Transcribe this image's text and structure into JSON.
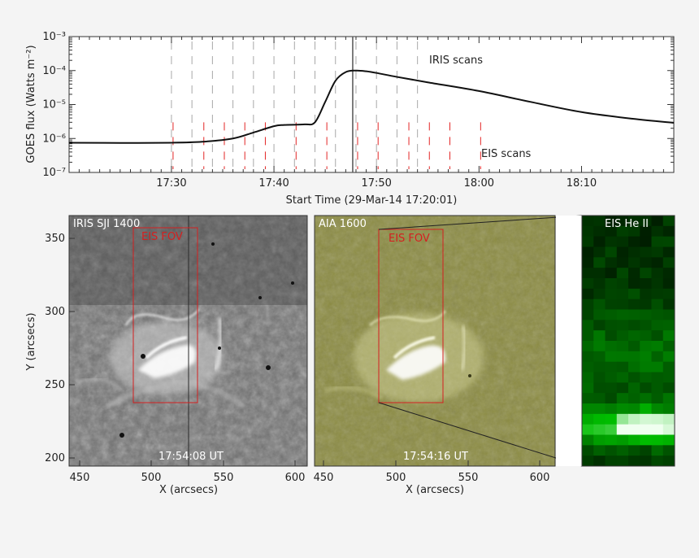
{
  "chart_data": {
    "type": "line",
    "ylabel": "GOES flux (Watts m⁻²)",
    "xlabel": "Start Time (29-Mar-14 17:20:01)",
    "xlim": [
      "17:20:01",
      "18:19:00"
    ],
    "ylim": [
      1e-07,
      0.001
    ],
    "yscale": "log",
    "x_ticks": [
      "17:30",
      "17:40",
      "17:50",
      "18:00",
      "18:10"
    ],
    "y_ticks": [
      "10⁻³",
      "10⁻⁴",
      "10⁻⁵",
      "10⁻⁶",
      "10⁻⁷"
    ],
    "series": [
      {
        "x": [
          "17:20",
          "17:25",
          "17:30",
          "17:33",
          "17:36",
          "17:38",
          "17:40",
          "17:41",
          "17:43",
          "17:44",
          "17:45",
          "17:46",
          "17:47",
          "17:48",
          "17:49",
          "17:50",
          "17:52",
          "17:55",
          "18:00",
          "18:05",
          "18:10",
          "18:15",
          "18:19"
        ],
        "values": [
          7.5e-07,
          7.4e-07,
          7.5e-07,
          8e-07,
          1e-06,
          1.5e-06,
          2.3e-06,
          2.5e-06,
          2.6e-06,
          3e-06,
          1.2e-05,
          5e-05,
          9e-05,
          0.0001,
          9.5e-05,
          8.5e-05,
          6.5e-05,
          4.5e-05,
          2.5e-05,
          1.2e-05,
          6e-06,
          3.8e-06,
          2.9e-06
        ]
      }
    ],
    "annotations": [
      {
        "text": "IRIS scans",
        "color": "#888888"
      },
      {
        "text": "EIS scans",
        "color": "#e32626"
      }
    ],
    "iris_scan_times": [
      "17:30",
      "17:32",
      "17:34",
      "17:36",
      "17:38",
      "17:40",
      "17:42",
      "17:44",
      "17:46",
      "17:48",
      "17:50",
      "17:52",
      "17:54"
    ],
    "eis_scan_times": [
      "17:30",
      "17:33",
      "17:35",
      "17:37",
      "17:39",
      "17:42",
      "17:45",
      "17:48",
      "17:50",
      "17:53",
      "17:55",
      "17:57",
      "18:00"
    ],
    "vertical_marker": "17:48"
  },
  "panels": {
    "iris": {
      "title": "IRIS SJI 1400",
      "time": "17:54:08 UT",
      "fov_label": "EIS FOV",
      "xlabel": "X (arcsecs)",
      "ylabel": "Y (arcsecs)",
      "x_ticks": [
        "450",
        "500",
        "550",
        "600"
      ],
      "y_ticks": [
        "350",
        "300",
        "250",
        "200"
      ]
    },
    "aia": {
      "title": "AIA 1600",
      "time": "17:54:16 UT",
      "fov_label": "EIS FOV",
      "xlabel": "X (arcsecs)",
      "x_ticks": [
        "450",
        "500",
        "550",
        "600"
      ]
    },
    "eis": {
      "title": "EIS He II"
    }
  },
  "colors": {
    "curve": "#111111",
    "iris_ticks": "#a8a8a8",
    "eis_ticks": "#e32626",
    "fov_box": "#d42020",
    "aia_tint": "#8a8a3a",
    "eis_green": "#1a8a1a"
  }
}
